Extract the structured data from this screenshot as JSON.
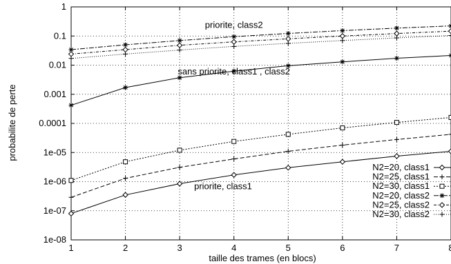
{
  "chart_data": {
    "type": "line",
    "title": "",
    "xlabel": "taille des trames (en blocs)",
    "ylabel": "probabilite de perte",
    "x_scale": "linear",
    "y_scale": "log",
    "xlim": [
      1,
      8
    ],
    "ylim": [
      1e-08,
      1
    ],
    "grid": true,
    "x_ticks": [
      "1",
      "2",
      "3",
      "4",
      "5",
      "6",
      "7",
      "8"
    ],
    "y_ticks": [
      {
        "value": 1,
        "label": "1"
      },
      {
        "value": 0.1,
        "label": "0.1"
      },
      {
        "value": 0.01,
        "label": "0.01"
      },
      {
        "value": 0.001,
        "label": "0.001"
      },
      {
        "value": 0.0001,
        "label": "0.0001"
      },
      {
        "value": 1e-05,
        "label": "1e-05"
      },
      {
        "value": 1e-06,
        "label": "1e-06"
      },
      {
        "value": 1e-07,
        "label": "1e-07"
      },
      {
        "value": 1e-08,
        "label": "1e-08"
      }
    ],
    "x": [
      1,
      2,
      3,
      4,
      5,
      6,
      7,
      8
    ],
    "legend_position": "bottom-right",
    "series": [
      {
        "name": "N2=20, class1",
        "marker": "diamond",
        "dash": "",
        "values": [
          8e-08,
          3.5e-07,
          8.5e-07,
          1.7e-06,
          3e-06,
          4.8e-06,
          7.5e-06,
          1.1e-05
        ]
      },
      {
        "name": "N2=25, class1",
        "marker": "plus",
        "dash": "6 3",
        "values": [
          2.9e-07,
          1.3e-06,
          3.1e-06,
          6e-06,
          1.1e-05,
          1.8e-05,
          2.8e-05,
          4.2e-05
        ]
      },
      {
        "name": "N2=30, class1",
        "marker": "square",
        "dash": "2 2",
        "values": [
          1.1e-06,
          4.8e-06,
          1.2e-05,
          2.4e-05,
          4.2e-05,
          7e-05,
          0.000108,
          0.00016
        ]
      },
      {
        "name": "N2=20, class2",
        "marker": "asterisk",
        "dash": "7 2 2 2",
        "values": [
          0.034,
          0.05,
          0.07,
          0.095,
          0.123,
          0.153,
          0.187,
          0.222
        ]
      },
      {
        "name": "N2=25, class2",
        "marker": "diamond",
        "dash": "4 2 1 2",
        "values": [
          0.024,
          0.034,
          0.048,
          0.063,
          0.08,
          0.1,
          0.122,
          0.147
        ]
      },
      {
        "name": "N2=30, class2",
        "marker": "plus",
        "dash": "1 2",
        "values": [
          0.017,
          0.024,
          0.033,
          0.044,
          0.056,
          0.07,
          0.086,
          0.104
        ]
      },
      {
        "name": "",
        "marker": "asterisk",
        "dash": "",
        "values": [
          0.00042,
          0.0017,
          0.0037,
          0.0062,
          0.0095,
          0.013,
          0.0172,
          0.0215
        ]
      }
    ],
    "annotations": [
      {
        "text": "priorite, class2",
        "x": 4.0,
        "y": 0.19
      },
      {
        "text": "sans priorite, class1 , class2",
        "x": 4.0,
        "y": 0.0048
      },
      {
        "text": "priorite, class1",
        "x": 3.8,
        "y": 5.5e-07
      }
    ]
  }
}
